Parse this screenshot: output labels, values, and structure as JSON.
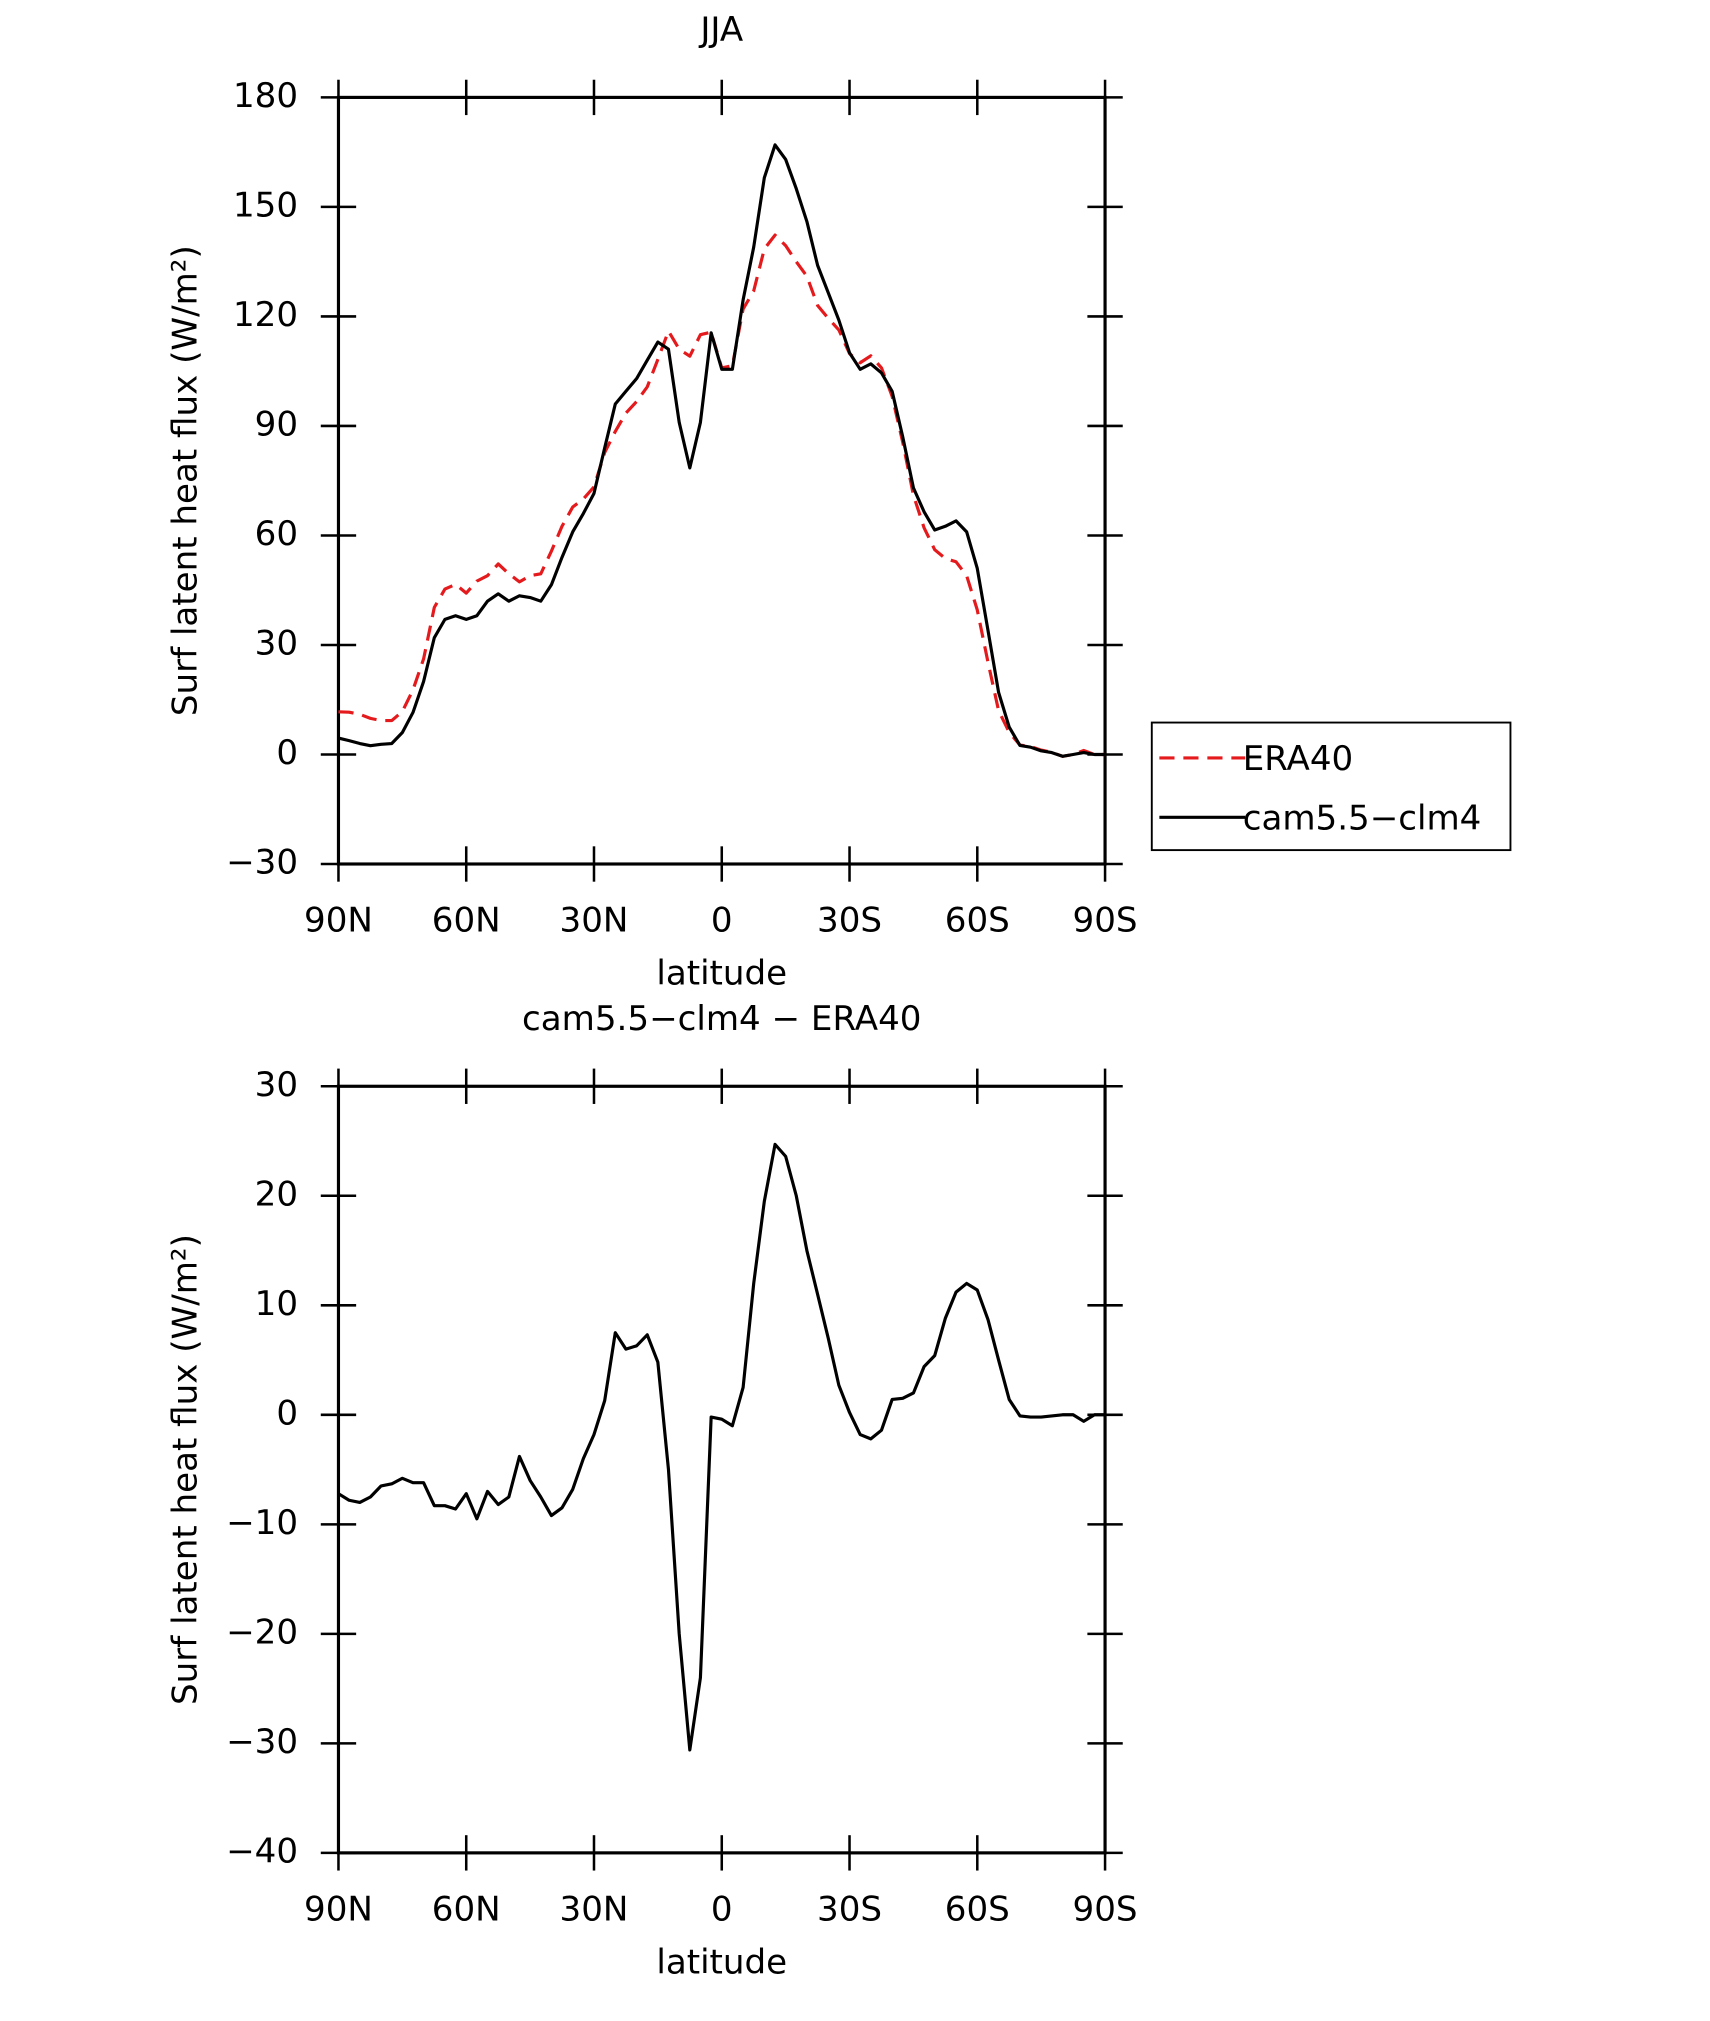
{
  "chart_data": [
    {
      "type": "line",
      "title": "JJA",
      "xlabel": "latitude",
      "ylabel": "Surf latent heat flux (W/m²)",
      "x": [
        90,
        87.5,
        85,
        82.5,
        80,
        77.5,
        75,
        72.5,
        70,
        67.5,
        65,
        62.5,
        60,
        57.5,
        55,
        52.5,
        50,
        47.5,
        45,
        42.5,
        40,
        37.5,
        35,
        32.5,
        30,
        27.5,
        25,
        22.5,
        20,
        17.5,
        15,
        12.5,
        10,
        7.5,
        5,
        2.5,
        0,
        -2.5,
        -5,
        -7.5,
        -10,
        -12.5,
        -15,
        -17.5,
        -20,
        -22.5,
        -25,
        -27.5,
        -30,
        -32.5,
        -35,
        -37.5,
        -40,
        -42.5,
        -45,
        -47.5,
        -50,
        -52.5,
        -55,
        -57.5,
        -60,
        -62.5,
        -65,
        -67.5,
        -70,
        -72.5,
        -75,
        -77.5,
        -80,
        -82.5,
        -85,
        -87.5,
        -90
      ],
      "series": [
        {
          "name": "ERA40",
          "color": "#e41a1c",
          "dashed": true,
          "values": [
            11.7,
            11.6,
            11,
            9.9,
            9.3,
            9.3,
            11.8,
            17.7,
            26.2,
            40.3,
            45.3,
            46.6,
            44.2,
            47.5,
            49,
            52.2,
            49.5,
            47.3,
            49,
            49.5,
            55.7,
            62.5,
            67.8,
            70,
            73.3,
            82.7,
            88.5,
            93.5,
            96.7,
            100.7,
            108.2,
            116,
            111,
            109.1,
            115,
            115.7,
            105.9,
            106.5,
            122,
            127,
            138.5,
            142.3,
            139.4,
            135,
            131,
            123,
            119.5,
            116.3,
            109.8,
            107.3,
            109.2,
            105.9,
            98.1,
            85.5,
            71,
            62.1,
            56.1,
            53.7,
            52.8,
            49,
            39.6,
            25.3,
            12,
            6.1,
            2.6,
            2.2,
            1.2,
            0.6,
            -0.5,
            0,
            1.1,
            0,
            0
          ]
        },
        {
          "name": "cam5.5−clm4",
          "color": "#000000",
          "dashed": false,
          "values": [
            4.5,
            3.8,
            3,
            2.4,
            2.8,
            3,
            6,
            11.5,
            20,
            32,
            37,
            38,
            37,
            38,
            42,
            44,
            42,
            43.5,
            43,
            42,
            46.5,
            54,
            61,
            66,
            71.5,
            84,
            96,
            99.5,
            103,
            108,
            113,
            111,
            91,
            78.5,
            91,
            115.5,
            105.5,
            105.5,
            124.5,
            139,
            158,
            167,
            163,
            155,
            146,
            134,
            126.5,
            119,
            110,
            105.5,
            107,
            104.5,
            99.5,
            87,
            73,
            66.5,
            61.5,
            62.5,
            64,
            61,
            51,
            34,
            17,
            7.5,
            2.5,
            2,
            1,
            0.5,
            -0.5,
            0,
            0.5,
            0,
            0
          ]
        }
      ],
      "xlim": [
        90,
        -90
      ],
      "xticks": [
        {
          "value": 90,
          "label": "90N"
        },
        {
          "value": 60,
          "label": "60N"
        },
        {
          "value": 30,
          "label": "30N"
        },
        0,
        {
          "value": -30,
          "label": "30S"
        },
        {
          "value": -60,
          "label": "60S"
        },
        {
          "value": -90,
          "label": "90S"
        }
      ],
      "ylim": [
        -30,
        180
      ],
      "yticks": [
        {
          "value": -30,
          "label": "−30"
        },
        0,
        30,
        60,
        90,
        120,
        150,
        180
      ]
    },
    {
      "type": "line",
      "title": "cam5.5−clm4 − ERA40",
      "xlabel": "latitude",
      "ylabel": "Surf latent heat flux (W/m²)",
      "x": [
        90,
        87.5,
        85,
        82.5,
        80,
        77.5,
        75,
        72.5,
        70,
        67.5,
        65,
        62.5,
        60,
        57.5,
        55,
        52.5,
        50,
        47.5,
        45,
        42.5,
        40,
        37.5,
        35,
        32.5,
        30,
        27.5,
        25,
        22.5,
        20,
        17.5,
        15,
        12.5,
        10,
        7.5,
        5,
        2.5,
        0,
        -2.5,
        -5,
        -7.5,
        -10,
        -12.5,
        -15,
        -17.5,
        -20,
        -22.5,
        -25,
        -27.5,
        -30,
        -32.5,
        -35,
        -37.5,
        -40,
        -42.5,
        -45,
        -47.5,
        -50,
        -52.5,
        -55,
        -57.5,
        -60,
        -62.5,
        -65,
        -67.5,
        -70,
        -72.5,
        -75,
        -77.5,
        -80,
        -82.5,
        -85,
        -87.5,
        -90
      ],
      "series": [
        {
          "color": "#000000",
          "dashed": false,
          "values": [
            -7.2,
            -7.8,
            -8,
            -7.5,
            -6.5,
            -6.3,
            -5.8,
            -6.2,
            -6.2,
            -8.3,
            -8.3,
            -8.6,
            -7.2,
            -9.5,
            -7,
            -8.2,
            -7.5,
            -3.8,
            -6,
            -7.5,
            -9.2,
            -8.5,
            -6.8,
            -4,
            -1.8,
            1.3,
            7.5,
            6,
            6.3,
            7.3,
            4.8,
            -5,
            -20,
            -30.6,
            -24,
            -0.2,
            -0.4,
            -1,
            2.5,
            12,
            19.5,
            24.7,
            23.6,
            20,
            15,
            11,
            7,
            2.7,
            0.2,
            -1.8,
            -2.2,
            -1.4,
            1.4,
            1.5,
            2,
            4.4,
            5.4,
            8.8,
            11.2,
            12,
            11.4,
            8.7,
            5,
            1.4,
            -0.1,
            -0.2,
            -0.2,
            -0.1,
            0,
            0,
            -0.6,
            0,
            0
          ]
        }
      ],
      "xlim": [
        90,
        -90
      ],
      "xticks": [
        {
          "value": 90,
          "label": "90N"
        },
        {
          "value": 60,
          "label": "60N"
        },
        {
          "value": 30,
          "label": "30N"
        },
        0,
        {
          "value": -30,
          "label": "30S"
        },
        {
          "value": -60,
          "label": "60S"
        },
        {
          "value": -90,
          "label": "90S"
        }
      ],
      "ylim": [
        -40,
        30
      ],
      "yticks": [
        {
          "value": -40,
          "label": "−40"
        },
        {
          "value": -30,
          "label": "−30"
        },
        {
          "value": -20,
          "label": "−20"
        },
        {
          "value": -10,
          "label": "−10"
        },
        0,
        10,
        20,
        30
      ]
    }
  ]
}
